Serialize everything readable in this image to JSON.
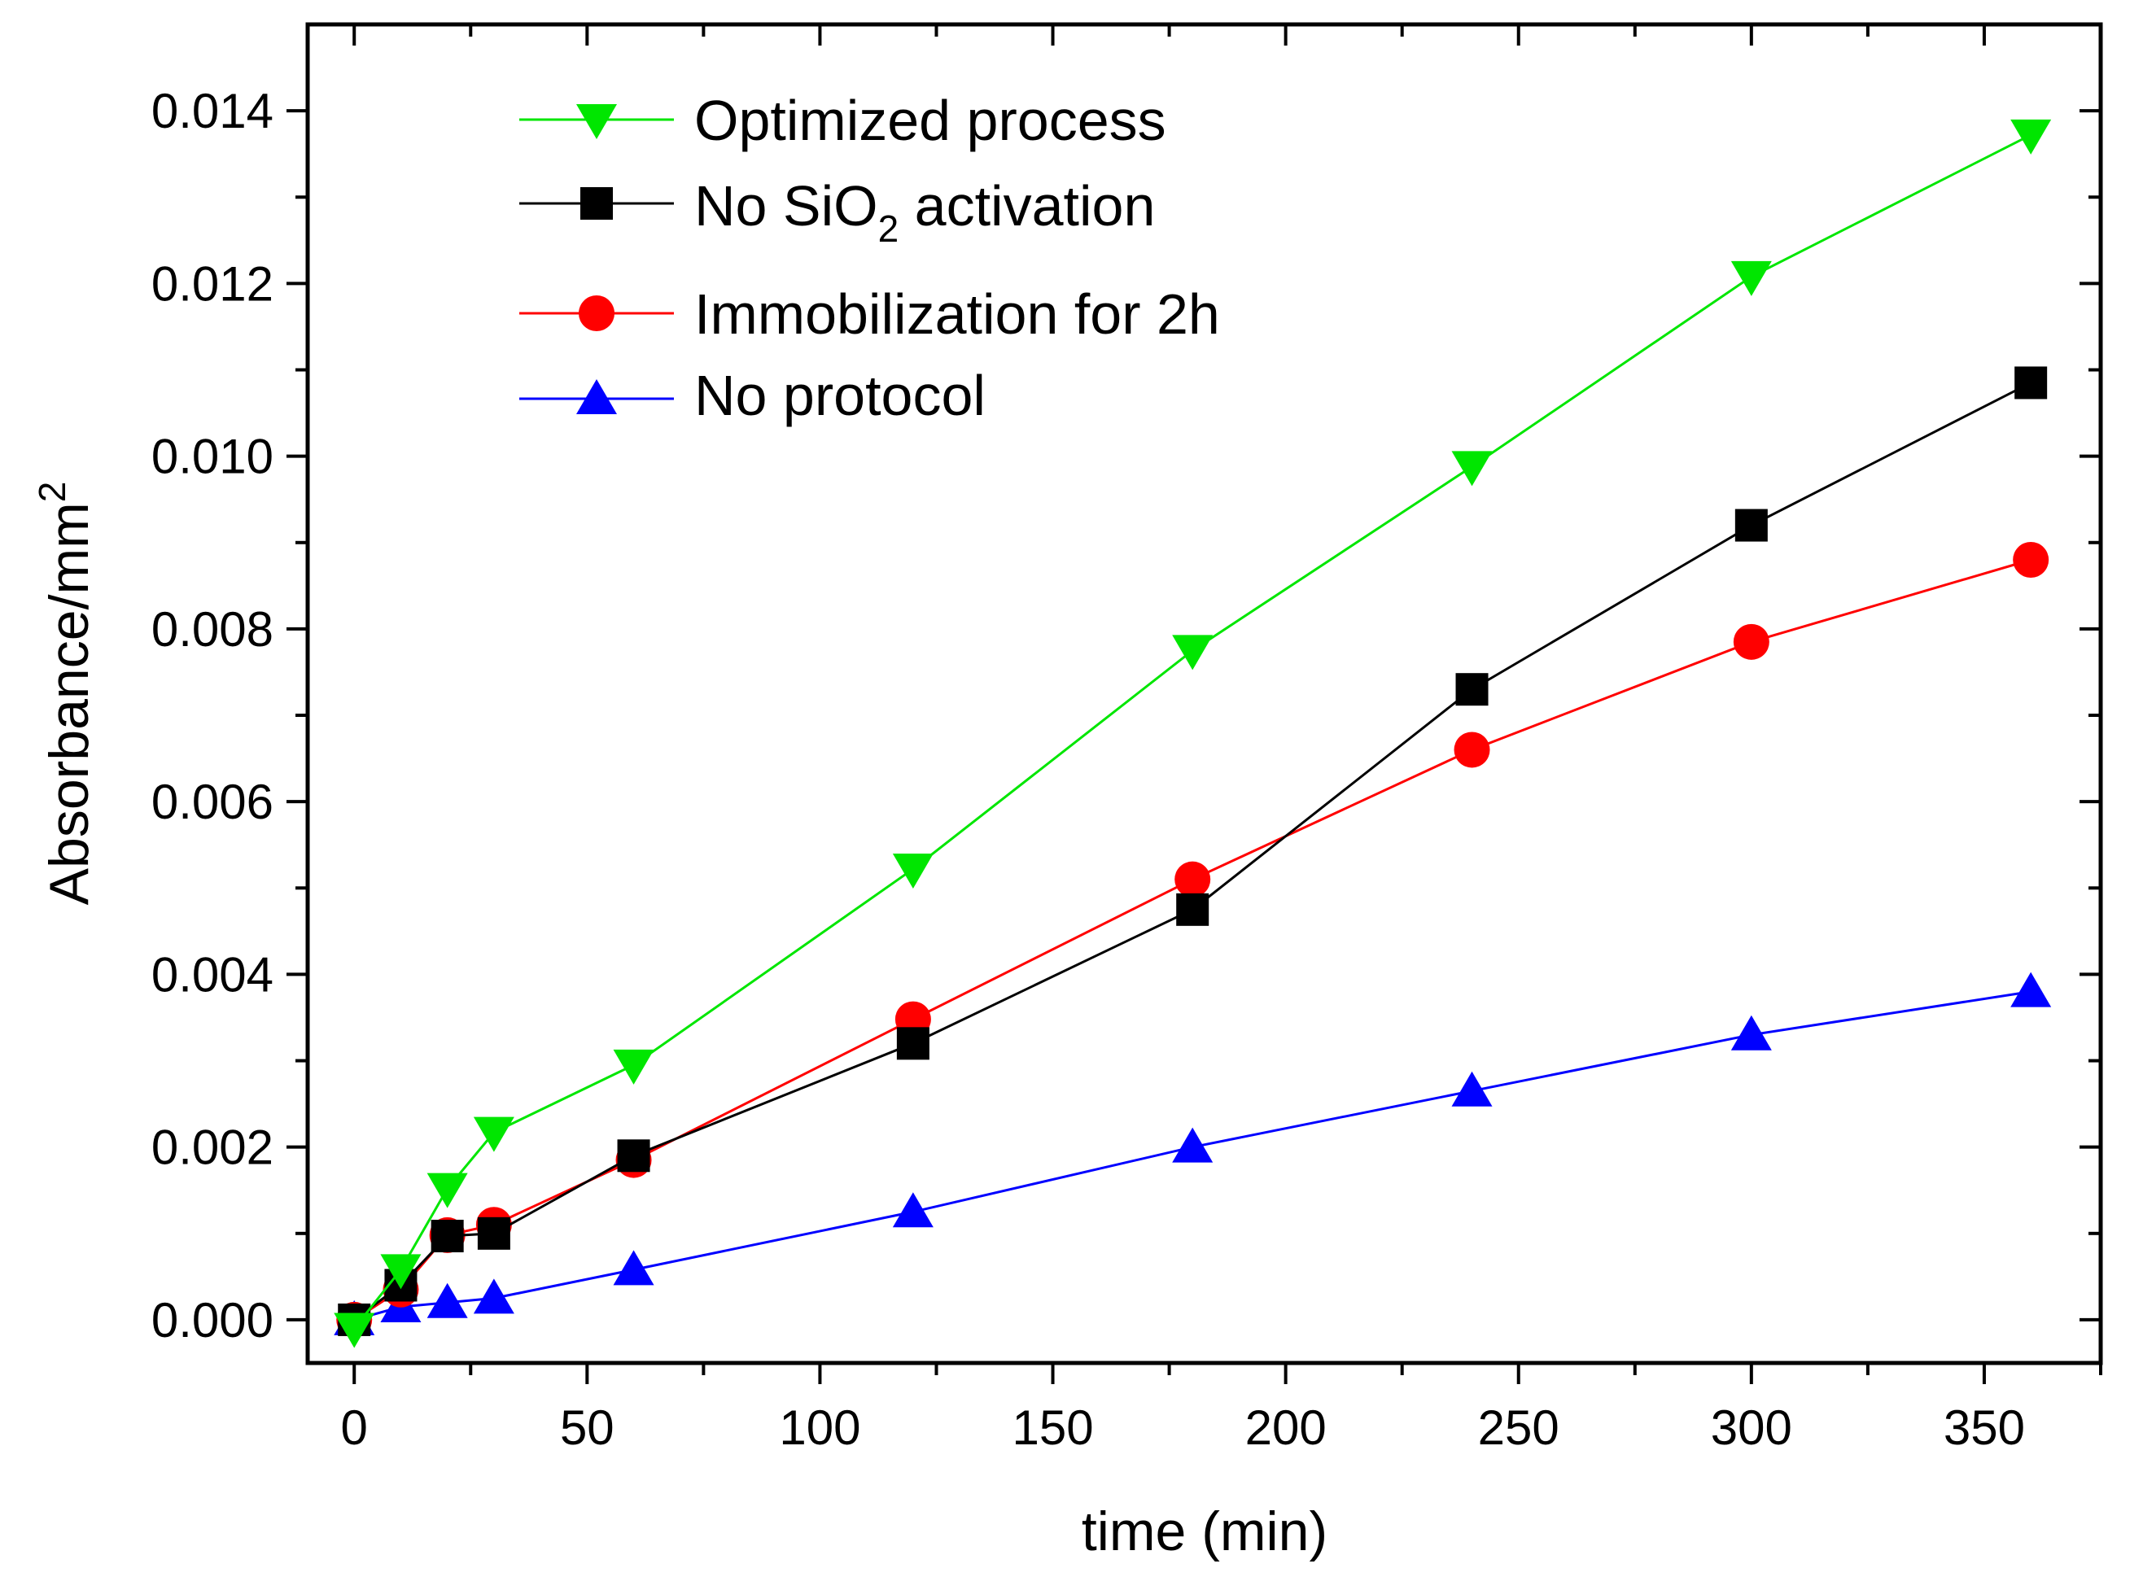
{
  "chart_data": {
    "type": "line",
    "title": "",
    "xlabel": "time (min)",
    "ylabel": {
      "base": "Absorbance/mm",
      "superscript": "2"
    },
    "xlim": [
      -10,
      375
    ],
    "ylim": [
      -0.0005,
      0.015
    ],
    "x": [
      0,
      10,
      20,
      30,
      60,
      120,
      180,
      240,
      300,
      360
    ],
    "x_ticks": [
      0,
      50,
      100,
      150,
      200,
      250,
      300,
      350
    ],
    "x_tick_labels": [
      "0",
      "50",
      "100",
      "150",
      "200",
      "250",
      "300",
      "350"
    ],
    "y_ticks": [
      0,
      0.002,
      0.004,
      0.006,
      0.008,
      0.01,
      0.012,
      0.014
    ],
    "y_tick_labels": [
      "0.000",
      "0.002",
      "0.004",
      "0.006",
      "0.008",
      "0.010",
      "0.012",
      "0.014"
    ],
    "grid": false,
    "legend_position": "top-left",
    "series": [
      {
        "name": "Optimized process",
        "legend": {
          "text": "Optimized process"
        },
        "color": "#00e600",
        "marker": "triangle-down",
        "values": [
          -0.0001,
          0.00058,
          0.00152,
          0.00217,
          0.00295,
          0.00522,
          0.00775,
          0.00988,
          0.01208,
          0.01372
        ]
      },
      {
        "name": "No SiO2 activation",
        "legend": {
          "pre": "No SiO",
          "sub": "2",
          "post": " activation"
        },
        "color": "#000000",
        "marker": "square",
        "values": [
          0.0,
          0.0004,
          0.00097,
          0.001,
          0.0019,
          0.0032,
          0.00475,
          0.0073,
          0.0092,
          0.01085
        ]
      },
      {
        "name": "Immobilization for 2h",
        "legend": {
          "text": "Immobilization for 2h"
        },
        "color": "#ff0000",
        "marker": "circle",
        "values": [
          0.0,
          0.00035,
          0.00098,
          0.0011,
          0.00185,
          0.00348,
          0.0051,
          0.0066,
          0.00785,
          0.0088
        ]
      },
      {
        "name": "No protocol",
        "legend": {
          "text": "No protocol"
        },
        "color": "#0000ff",
        "marker": "triangle-up",
        "values": [
          0.0,
          0.00015,
          0.0002,
          0.00025,
          0.00058,
          0.00125,
          0.002,
          0.00265,
          0.0033,
          0.0038
        ]
      }
    ]
  }
}
